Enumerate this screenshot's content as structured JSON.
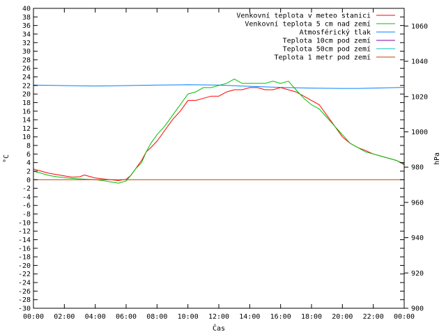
{
  "chart_data": {
    "type": "line",
    "xlabel": "Čas",
    "ylabel": "°C",
    "y2label": "hPa",
    "x_ticks": [
      "00:00",
      "02:00",
      "04:00",
      "06:00",
      "08:00",
      "10:00",
      "12:00",
      "14:00",
      "16:00",
      "18:00",
      "20:00",
      "22:00",
      "00:00"
    ],
    "xlim": [
      0,
      24
    ],
    "ylim": [
      -30,
      40
    ],
    "y_ticks": [
      40,
      38,
      36,
      34,
      32,
      30,
      28,
      26,
      24,
      22,
      20,
      18,
      16,
      14,
      12,
      10,
      8,
      6,
      4,
      2,
      0,
      -2,
      -4,
      -6,
      -8,
      -10,
      -12,
      -14,
      -16,
      -18,
      -20,
      -22,
      -24,
      -26,
      -28,
      -30
    ],
    "y2lim": [
      900,
      1070
    ],
    "y2_ticks": [
      1060,
      1040,
      1020,
      1000,
      980,
      960,
      940,
      920,
      900
    ],
    "legend_position": "top-right",
    "series": [
      {
        "name": "Venkovní teplota v meteo stanici",
        "color": "#ff0000",
        "axis": "left",
        "x": [
          0,
          0.5,
          1,
          1.5,
          2,
          2.5,
          3,
          3.3,
          3.6,
          4,
          4.5,
          5,
          5.5,
          6,
          6.3,
          6.6,
          7,
          7.3,
          7.6,
          8,
          8.5,
          9,
          9.5,
          10,
          10.5,
          11,
          11.5,
          12,
          12.5,
          13,
          13.5,
          14,
          14.5,
          15,
          15.5,
          16,
          16.5,
          17,
          17.5,
          18,
          18.5,
          19,
          19.5,
          20,
          20.5,
          21,
          21.5,
          22,
          22.5,
          23,
          23.5,
          24
        ],
        "values": [
          2.5,
          2.0,
          1.5,
          1.2,
          0.9,
          0.6,
          0.7,
          1.1,
          0.8,
          0.4,
          0.2,
          0.0,
          -0.2,
          0.1,
          1.0,
          2.5,
          4.5,
          6.5,
          7.5,
          9,
          11.5,
          14,
          16,
          18.5,
          18.5,
          19,
          19.5,
          19.5,
          20.5,
          21,
          21,
          21.5,
          21.5,
          21,
          21,
          21.5,
          21,
          20.5,
          19.5,
          18.5,
          17.5,
          15,
          12.5,
          10,
          8.5,
          7.5,
          6.8,
          6.0,
          5.5,
          5.0,
          4.5,
          3.5
        ]
      },
      {
        "name": "Venkovní teplota 5 cm nad zemí",
        "color": "#00c000",
        "axis": "left",
        "x": [
          0,
          0.5,
          1,
          1.5,
          2,
          2.5,
          3,
          3.5,
          4,
          4.5,
          5,
          5.5,
          6,
          6.3,
          6.6,
          7,
          7.3,
          7.6,
          8,
          8.5,
          9,
          9.5,
          10,
          10.5,
          11,
          11.5,
          12,
          12.5,
          13,
          13.5,
          14,
          14.5,
          15,
          15.5,
          16,
          16.5,
          17,
          17.5,
          18,
          18.5,
          19,
          19.5,
          20,
          20.5,
          21,
          21.5,
          22,
          22.5,
          23,
          23.5,
          24
        ],
        "values": [
          2.0,
          1.5,
          1.0,
          0.7,
          0.5,
          0.3,
          0.2,
          0.1,
          0.0,
          -0.2,
          -0.5,
          -0.8,
          -0.3,
          1.0,
          2.5,
          4,
          6.5,
          8.5,
          10.5,
          12.5,
          15,
          17.5,
          20,
          20.5,
          21.5,
          21.5,
          22,
          22.5,
          23.5,
          22.5,
          22.5,
          22.5,
          22.5,
          23,
          22.5,
          23,
          21,
          19,
          17.5,
          16.5,
          14.5,
          12.5,
          10.5,
          8.5,
          7.5,
          6.5,
          6.0,
          5.5,
          5.0,
          4.5,
          3.7
        ]
      },
      {
        "name": "Atmosférický tlak",
        "color": "#0080ff",
        "axis": "right",
        "x": [
          0,
          2,
          4,
          6,
          8,
          10,
          12,
          14,
          16,
          18,
          20,
          21,
          22,
          23,
          24
        ],
        "values": [
          1026.5,
          1026.2,
          1026.0,
          1026.2,
          1026.5,
          1026.7,
          1026.5,
          1025.8,
          1025.2,
          1024.8,
          1024.6,
          1024.6,
          1024.8,
          1025.0,
          1025.2
        ]
      },
      {
        "name": "Teplota 10cm pod zemí",
        "color": "#8000a0",
        "axis": "left",
        "x": [],
        "values": []
      },
      {
        "name": "Teplota 50cm pod zemí",
        "color": "#00c0c0",
        "axis": "left",
        "x": [],
        "values": []
      },
      {
        "name": "Teplota 1 metr pod zemí",
        "color": "#c04000",
        "axis": "left",
        "x": [
          0,
          24
        ],
        "values": [
          0,
          0
        ]
      }
    ]
  }
}
